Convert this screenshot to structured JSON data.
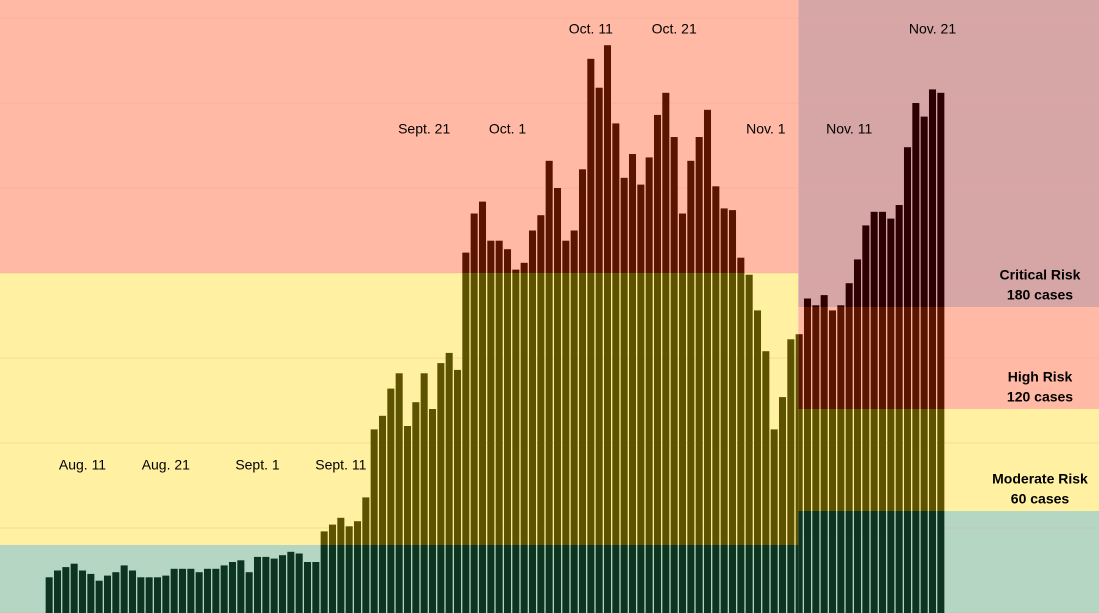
{
  "chart_data": {
    "type": "bar",
    "categories": [
      null,
      null,
      null,
      null,
      "Aug. 11",
      null,
      null,
      null,
      null,
      null,
      null,
      null,
      null,
      null,
      "Aug. 21",
      null,
      null,
      null,
      null,
      null,
      null,
      null,
      null,
      null,
      null,
      "Sept. 1",
      null,
      null,
      null,
      null,
      null,
      null,
      null,
      null,
      null,
      "Sept. 11",
      null,
      null,
      null,
      null,
      null,
      null,
      null,
      null,
      null,
      "Sept. 21",
      null,
      null,
      null,
      null,
      null,
      null,
      null,
      null,
      null,
      "Oct. 1",
      null,
      null,
      null,
      null,
      null,
      null,
      null,
      null,
      null,
      "Oct. 11",
      null,
      null,
      null,
      null,
      null,
      null,
      null,
      null,
      null,
      "Oct. 21",
      null,
      null,
      null,
      null,
      null,
      null,
      null,
      null,
      null,
      null,
      "Nov. 1",
      null,
      null,
      null,
      null,
      null,
      null,
      null,
      null,
      null,
      "Nov. 11",
      null,
      null,
      null,
      null,
      null,
      null,
      null,
      null,
      null,
      "Nov. 21",
      null
    ],
    "values": [
      21,
      25,
      27,
      29,
      25,
      23,
      19,
      22,
      24,
      28,
      25,
      21,
      21,
      21,
      22,
      26,
      26,
      26,
      24,
      26,
      26,
      28,
      30,
      31,
      24,
      33,
      33,
      32,
      34,
      36,
      35,
      30,
      30,
      48,
      52,
      56,
      51,
      54,
      68,
      108,
      116,
      132,
      141,
      110,
      124,
      141,
      120,
      147,
      153,
      143,
      212,
      235,
      242,
      219,
      219,
      214,
      202,
      206,
      225,
      234,
      266,
      250,
      219,
      225,
      261,
      326,
      309,
      334,
      288,
      256,
      270,
      252,
      268,
      293,
      306,
      280,
      235,
      266,
      280,
      296,
      251,
      238,
      237,
      209,
      199,
      178,
      154,
      108,
      127,
      161,
      164,
      185,
      181,
      187,
      178,
      181,
      194,
      208,
      228,
      236,
      236,
      232,
      240,
      274,
      300,
      292,
      308,
      306
    ],
    "ylim": [
      0,
      360.6
    ],
    "yticks": [
      0,
      50,
      100,
      150,
      200,
      250,
      300,
      350
    ],
    "grid": true,
    "zone_colors": [
      "#b5d6c3",
      "#fff1a1",
      "#ffb9a5",
      "#d6a5a6"
    ],
    "bar_colors": [
      "#0c3420",
      "#5c5200",
      "#5a1500",
      "#2c0003"
    ],
    "grid_color": "#e8a898",
    "zones": [
      {
        "start": 0,
        "limits": [
          40,
          200
        ]
      },
      {
        "start": 90,
        "limits": [
          60,
          120,
          180
        ],
        "names": [
          "Moderate Risk",
          "High Risk",
          "Critical Risk"
        ],
        "value_labels": [
          "60 cases",
          "120 cases",
          "180 cases"
        ]
      }
    ]
  }
}
